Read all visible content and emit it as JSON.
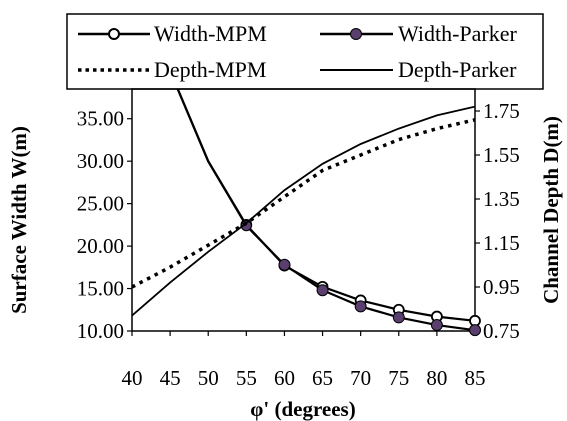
{
  "chart_data": {
    "type": "line",
    "title": "",
    "xlabel": "φ' (degrees)",
    "ylabel_left": "Surface Width W(m)",
    "ylabel_right": "Channel Depth D(m)",
    "x_ticks": [
      "40",
      "45",
      "50",
      "55",
      "60",
      "65",
      "70",
      "75",
      "80",
      "85"
    ],
    "y_left_ticks": [
      "10.00",
      "15.00",
      "20.00",
      "25.00",
      "30.00",
      "35.00"
    ],
    "y_right_ticks": [
      "0.75",
      "0.95",
      "1.15",
      "1.35",
      "1.55",
      "1.75"
    ],
    "xlim": [
      40,
      85
    ],
    "ylim_left": [
      10,
      38.5
    ],
    "ylim_right": [
      0.75,
      1.85
    ],
    "grid": false,
    "legend_placement": "top",
    "series": [
      {
        "name": "Width-MPM",
        "axis": "left",
        "style": "line-open-circle",
        "color": "#000000",
        "x": [
          46,
          50,
          55,
          60,
          65,
          70,
          75,
          80,
          85
        ],
        "y": [
          38.5,
          30.0,
          22.5,
          17.7,
          15.2,
          13.6,
          12.5,
          11.7,
          11.2
        ]
      },
      {
        "name": "Width-Parker",
        "axis": "left",
        "style": "line-filled-circle",
        "color": "#000000",
        "marker_color": "#5a3f6e",
        "x": [
          46,
          50,
          55,
          60,
          65,
          70,
          75,
          80,
          85
        ],
        "y": [
          38.5,
          30.0,
          22.4,
          17.8,
          14.8,
          12.9,
          11.6,
          10.7,
          10.1
        ]
      },
      {
        "name": "Depth-MPM",
        "axis": "right",
        "style": "dotted",
        "color": "#000000",
        "x": [
          40,
          45,
          50,
          55,
          60,
          65,
          70,
          75,
          80,
          85
        ],
        "y": [
          0.95,
          1.04,
          1.14,
          1.24,
          1.36,
          1.48,
          1.55,
          1.62,
          1.67,
          1.71
        ]
      },
      {
        "name": "Depth-Parker",
        "axis": "right",
        "style": "solid",
        "color": "#000000",
        "x": [
          40,
          45,
          50,
          55,
          60,
          65,
          70,
          75,
          80,
          85
        ],
        "y": [
          0.82,
          0.97,
          1.11,
          1.24,
          1.39,
          1.51,
          1.6,
          1.67,
          1.73,
          1.77
        ]
      }
    ]
  }
}
